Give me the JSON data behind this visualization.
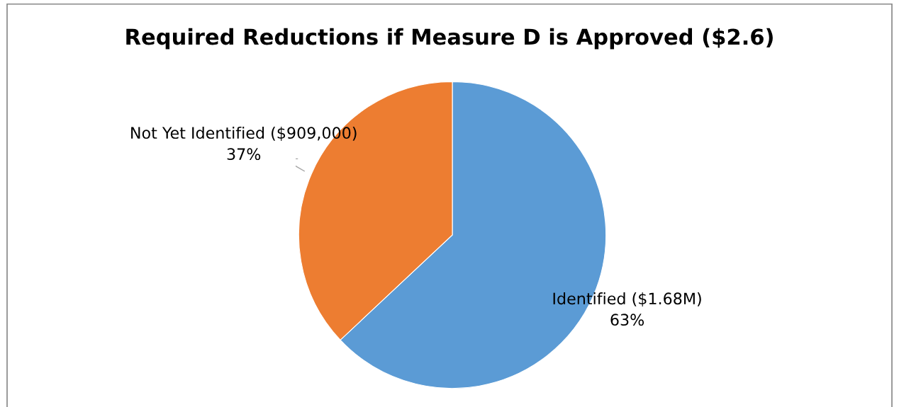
{
  "chart_data": {
    "type": "pie",
    "title": "Required Reductions if Measure D is Approved ($2.6)",
    "categories": [
      "Identified ($1.68M)",
      "Not Yet Identified ($909,000)"
    ],
    "values": [
      63,
      37
    ],
    "value_labels": [
      "63%",
      "37%"
    ],
    "colors": [
      "#5b9bd5",
      "#ed7d31"
    ],
    "legend": false
  }
}
